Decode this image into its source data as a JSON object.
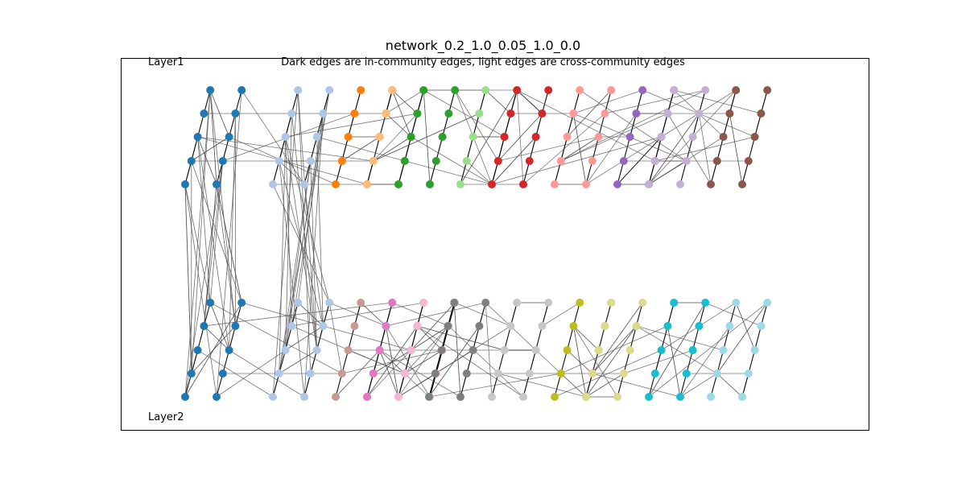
{
  "title": "network_0.2_1.0_0.05_1.0_0.0",
  "subtitle": "Dark edges are in-community edges, light edges are cross-community edges",
  "layer_labels": [
    "Layer1",
    "Layer2"
  ],
  "edge_colors": {
    "in_community": "#000000",
    "cross_community": "#555555"
  },
  "communities": [
    {
      "color": "#1f77b4",
      "layers": [
        1,
        2
      ]
    },
    {
      "color": "#aec7e8",
      "layers": [
        1,
        2
      ]
    },
    {
      "color": "#ff7f0e",
      "layers": [
        1
      ]
    },
    {
      "color": "#ffbb78",
      "layers": [
        1
      ]
    },
    {
      "color": "#2ca02c",
      "layers": [
        1
      ]
    },
    {
      "color": "#98df8a",
      "layers": [
        1
      ]
    },
    {
      "color": "#d62728",
      "layers": [
        1
      ]
    },
    {
      "color": "#ff9896",
      "layers": [
        1
      ]
    },
    {
      "color": "#9467bd",
      "layers": [
        1
      ]
    },
    {
      "color": "#c5b0d5",
      "layers": [
        1
      ]
    },
    {
      "color": "#8c564b",
      "layers": [
        1
      ]
    },
    {
      "color": "#c49c94",
      "layers": [
        2
      ]
    },
    {
      "color": "#e377c2",
      "layers": [
        2
      ]
    },
    {
      "color": "#f7b6d2",
      "layers": [
        2
      ]
    },
    {
      "color": "#7f7f7f",
      "layers": [
        2
      ]
    },
    {
      "color": "#c7c7c7",
      "layers": [
        2
      ]
    },
    {
      "color": "#bcbd22",
      "layers": [
        2
      ]
    },
    {
      "color": "#dbdb8d",
      "layers": [
        2
      ]
    },
    {
      "color": "#17becf",
      "layers": [
        2
      ]
    },
    {
      "color": "#9edae5",
      "layers": [
        2
      ]
    }
  ]
}
